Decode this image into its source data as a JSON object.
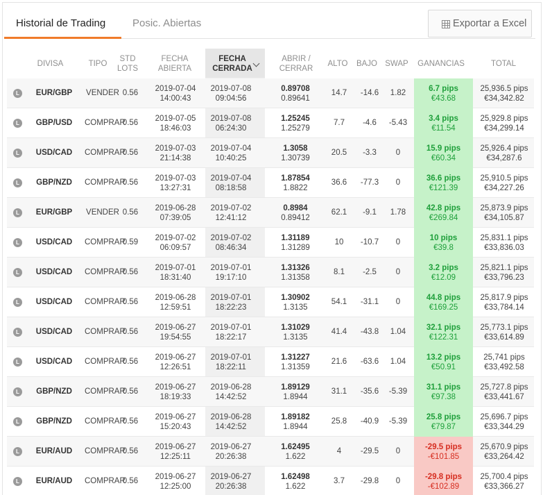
{
  "tabs": {
    "history": "Historial de Trading",
    "open_positions": "Posic. Abiertas"
  },
  "export_label": "Exportar a Excel",
  "icons": {
    "export": "spreadsheet-icon",
    "row_badge": "L",
    "sort": "chevron-down-icon"
  },
  "colors": {
    "accent": "#f07b2a",
    "gain_positive_bg": "#c6f2c9",
    "gain_positive_text": "#1e9f3a",
    "gain_negative_bg": "#f9c9c5",
    "gain_negative_text": "#d62d20"
  },
  "columns": {
    "divisa": "DIVISA",
    "tipo": "TIPO",
    "lots_1": "STD",
    "lots_2": "LOTS",
    "open_date_1": "FECHA",
    "open_date_2": "ABIERTA",
    "close_date_1": "FECHA",
    "close_date_2": "CERRADA",
    "price_1": "ABRIR /",
    "price_2": "CERRAR",
    "high": "ALTO",
    "low": "BAJO",
    "swap": "SWAP",
    "gains": "GANANCIAS",
    "total": "TOTAL"
  },
  "rows": [
    {
      "pair": "EUR/GBP",
      "type": "VENDER",
      "lots": "0.56",
      "open_date": "2019-07-04",
      "open_time": "14:00:43",
      "close_date": "2019-07-08",
      "close_time": "09:04:56",
      "open_price": "0.89708",
      "close_price": "0.89641",
      "high": "14.7",
      "low": "-14.6",
      "swap": "1.82",
      "pips": "6.7 pips",
      "amount": "€43.68",
      "positive": true,
      "total_pips": "25,936.5 pips",
      "total_eur": "€34,342.82"
    },
    {
      "pair": "GBP/USD",
      "type": "COMPRAR",
      "lots": "0.56",
      "open_date": "2019-07-05",
      "open_time": "18:46:03",
      "close_date": "2019-07-08",
      "close_time": "06:24:30",
      "open_price": "1.25245",
      "close_price": "1.25279",
      "high": "7.7",
      "low": "-4.6",
      "swap": "-5.43",
      "pips": "3.4 pips",
      "amount": "€11.54",
      "positive": true,
      "total_pips": "25,929.8 pips",
      "total_eur": "€34,299.14"
    },
    {
      "pair": "USD/CAD",
      "type": "COMPRAR",
      "lots": "0.56",
      "open_date": "2019-07-03",
      "open_time": "21:14:38",
      "close_date": "2019-07-04",
      "close_time": "10:40:25",
      "open_price": "1.3058",
      "close_price": "1.30739",
      "high": "20.5",
      "low": "-3.3",
      "swap": "0",
      "pips": "15.9 pips",
      "amount": "€60.34",
      "positive": true,
      "total_pips": "25,926.4 pips",
      "total_eur": "€34,287.6"
    },
    {
      "pair": "GBP/NZD",
      "type": "COMPRAR",
      "lots": "0.56",
      "open_date": "2019-07-03",
      "open_time": "13:27:31",
      "close_date": "2019-07-04",
      "close_time": "08:18:58",
      "open_price": "1.87854",
      "close_price": "1.8822",
      "high": "36.6",
      "low": "-77.3",
      "swap": "0",
      "pips": "36.6 pips",
      "amount": "€121.39",
      "positive": true,
      "total_pips": "25,910.5 pips",
      "total_eur": "€34,227.26"
    },
    {
      "pair": "EUR/GBP",
      "type": "VENDER",
      "lots": "0.56",
      "open_date": "2019-06-28",
      "open_time": "07:39:05",
      "close_date": "2019-07-02",
      "close_time": "12:41:12",
      "open_price": "0.8984",
      "close_price": "0.89412",
      "high": "62.1",
      "low": "-9.1",
      "swap": "1.78",
      "pips": "42.8 pips",
      "amount": "€269.84",
      "positive": true,
      "total_pips": "25,873.9 pips",
      "total_eur": "€34,105.87"
    },
    {
      "pair": "USD/CAD",
      "type": "COMPRAR",
      "lots": "0.59",
      "open_date": "2019-07-02",
      "open_time": "06:09:57",
      "close_date": "2019-07-02",
      "close_time": "08:46:34",
      "open_price": "1.31189",
      "close_price": "1.31289",
      "high": "10",
      "low": "-10.7",
      "swap": "0",
      "pips": "10 pips",
      "amount": "€39.8",
      "positive": true,
      "total_pips": "25,831.1 pips",
      "total_eur": "€33,836.03"
    },
    {
      "pair": "USD/CAD",
      "type": "COMPRAR",
      "lots": "0.56",
      "open_date": "2019-07-01",
      "open_time": "18:31:40",
      "close_date": "2019-07-01",
      "close_time": "19:17:10",
      "open_price": "1.31326",
      "close_price": "1.31358",
      "high": "8.1",
      "low": "-2.5",
      "swap": "0",
      "pips": "3.2 pips",
      "amount": "€12.09",
      "positive": true,
      "total_pips": "25,821.1 pips",
      "total_eur": "€33,796.23"
    },
    {
      "pair": "USD/CAD",
      "type": "COMPRAR",
      "lots": "0.56",
      "open_date": "2019-06-28",
      "open_time": "12:59:51",
      "close_date": "2019-07-01",
      "close_time": "18:22:23",
      "open_price": "1.30902",
      "close_price": "1.3135",
      "high": "54.1",
      "low": "-31.1",
      "swap": "0",
      "pips": "44.8 pips",
      "amount": "€169.25",
      "positive": true,
      "total_pips": "25,817.9 pips",
      "total_eur": "€33,784.14"
    },
    {
      "pair": "USD/CAD",
      "type": "COMPRAR",
      "lots": "0.56",
      "open_date": "2019-06-27",
      "open_time": "19:54:55",
      "close_date": "2019-07-01",
      "close_time": "18:22:17",
      "open_price": "1.31029",
      "close_price": "1.3135",
      "high": "41.4",
      "low": "-43.8",
      "swap": "1.04",
      "pips": "32.1 pips",
      "amount": "€122.31",
      "positive": true,
      "total_pips": "25,773.1 pips",
      "total_eur": "€33,614.89"
    },
    {
      "pair": "USD/CAD",
      "type": "COMPRAR",
      "lots": "0.56",
      "open_date": "2019-06-27",
      "open_time": "12:26:51",
      "close_date": "2019-07-01",
      "close_time": "18:22:11",
      "open_price": "1.31227",
      "close_price": "1.31359",
      "high": "21.6",
      "low": "-63.6",
      "swap": "1.04",
      "pips": "13.2 pips",
      "amount": "€50.91",
      "positive": true,
      "total_pips": "25,741 pips",
      "total_eur": "€33,492.58"
    },
    {
      "pair": "GBP/NZD",
      "type": "COMPRAR",
      "lots": "0.56",
      "open_date": "2019-06-27",
      "open_time": "18:19:33",
      "close_date": "2019-06-28",
      "close_time": "14:42:52",
      "open_price": "1.89129",
      "close_price": "1.8944",
      "high": "31.1",
      "low": "-35.6",
      "swap": "-5.39",
      "pips": "31.1 pips",
      "amount": "€97.38",
      "positive": true,
      "total_pips": "25,727.8 pips",
      "total_eur": "€33,441.67"
    },
    {
      "pair": "GBP/NZD",
      "type": "COMPRAR",
      "lots": "0.56",
      "open_date": "2019-06-27",
      "open_time": "15:20:43",
      "close_date": "2019-06-28",
      "close_time": "14:42:52",
      "open_price": "1.89182",
      "close_price": "1.8944",
      "high": "25.8",
      "low": "-40.9",
      "swap": "-5.39",
      "pips": "25.8 pips",
      "amount": "€79.87",
      "positive": true,
      "total_pips": "25,696.7 pips",
      "total_eur": "€33,344.29"
    },
    {
      "pair": "EUR/AUD",
      "type": "COMPRAR",
      "lots": "0.56",
      "open_date": "2019-06-27",
      "open_time": "12:25:11",
      "close_date": "2019-06-27",
      "close_time": "20:26:38",
      "open_price": "1.62495",
      "close_price": "1.622",
      "high": "4",
      "low": "-29.5",
      "swap": "0",
      "pips": "-29.5 pips",
      "amount": "-€101.85",
      "positive": false,
      "total_pips": "25,670.9 pips",
      "total_eur": "€33,264.42"
    },
    {
      "pair": "EUR/AUD",
      "type": "COMPRAR",
      "lots": "0.56",
      "open_date": "2019-06-27",
      "open_time": "12:25:00",
      "close_date": "2019-06-27",
      "close_time": "20:26:38",
      "open_price": "1.62498",
      "close_price": "1.622",
      "high": "3.7",
      "low": "-29.8",
      "swap": "0",
      "pips": "-29.8 pips",
      "amount": "-€102.89",
      "positive": false,
      "total_pips": "25,700.4 pips",
      "total_eur": "€33,366.27"
    }
  ]
}
